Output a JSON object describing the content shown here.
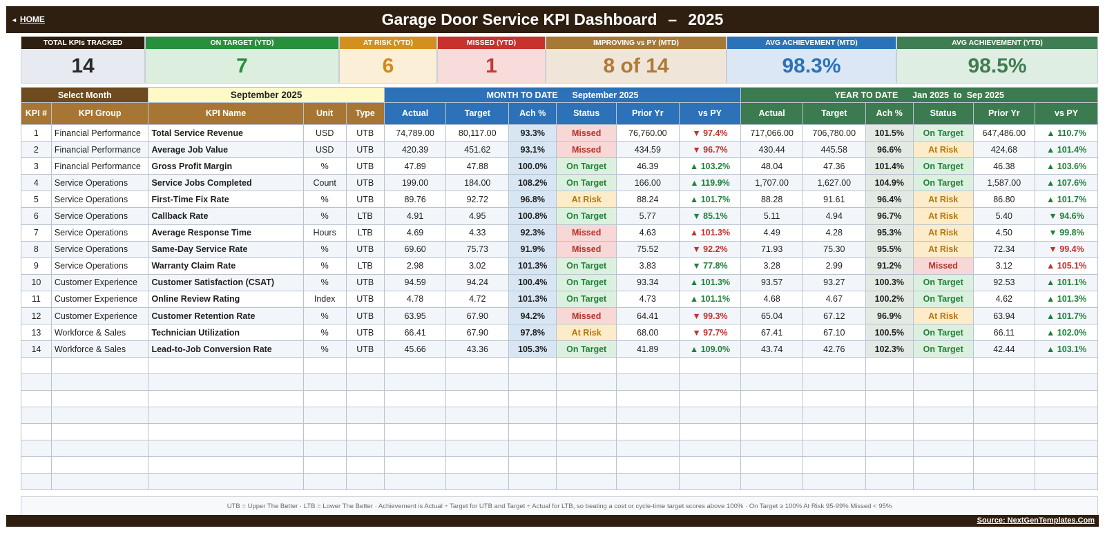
{
  "header": {
    "home_label": "HOME",
    "title": "Garage Door Service KPI Dashboard",
    "title_sep": "–",
    "year": "2025"
  },
  "cards": [
    {
      "label": "TOTAL KPIs TRACKED",
      "value": "14",
      "head_bg": "#2e1f10",
      "body_bg": "#e7ebf1",
      "val_color": "#2a2a2a"
    },
    {
      "label": "ON TARGET (YTD)",
      "value": "7",
      "head_bg": "#27903c",
      "body_bg": "#dcefdf",
      "val_color": "#27903c"
    },
    {
      "label": "AT RISK (YTD)",
      "value": "6",
      "head_bg": "#d4901f",
      "body_bg": "#fcefd8",
      "val_color": "#d08a1c"
    },
    {
      "label": "MISSED (YTD)",
      "value": "1",
      "head_bg": "#c8322c",
      "body_bg": "#f8dcdc",
      "val_color": "#c23a31"
    },
    {
      "label": "IMPROVING vs PY (MTD)",
      "value": "8 of 14",
      "head_bg": "#a87836",
      "body_bg": "#efe5d8",
      "val_color": "#b07a35"
    },
    {
      "label": "AVG ACHIEVEMENT (MTD)",
      "value": "98.3%",
      "head_bg": "#2c72b8",
      "body_bg": "#dbe7f4",
      "val_color": "#2c72b8"
    },
    {
      "label": "AVG ACHIEVEMENT (YTD)",
      "value": "98.5%",
      "head_bg": "#3f7d52",
      "body_bg": "#dfeee2",
      "val_color": "#3f7d52"
    }
  ],
  "selector": {
    "label": "Select Month",
    "value": "September 2025"
  },
  "mtd": {
    "label": "MONTH TO DATE",
    "period": "September 2025"
  },
  "ytd": {
    "label": "YEAR TO DATE",
    "period_from": "Jan 2025",
    "period_to_word": "to",
    "period_to": "Sep 2025"
  },
  "columns": {
    "kpi_num": "KPI #",
    "group": "KPI Group",
    "name": "KPI Name",
    "unit": "Unit",
    "type": "Type",
    "actual": "Actual",
    "target": "Target",
    "ach": "Ach %",
    "status": "Status",
    "prior": "Prior Yr",
    "vs_py": "vs PY"
  },
  "colors": {
    "brown_head": "#a87634",
    "dark_brown": "#6e4a1f",
    "mtd_blue": "#2d72b8",
    "ytd_green": "#3c7b4f",
    "selector_bg": "#fff9c8",
    "status_missed_bg": "#f8d7d7",
    "status_missed_fg": "#b8322b",
    "status_risk_bg": "#fcecc9",
    "status_risk_fg": "#b6760f",
    "status_ok_bg": "#dcf0df",
    "status_ok_fg": "#22803a",
    "up_color": "#22803a",
    "down_color": "#c0322b",
    "mtd_ach_bg": "#d8e6f4",
    "ytd_ach_bg": "#e2eae3"
  },
  "rows": [
    {
      "num": "1",
      "group": "Financial Performance",
      "name": "Total Service Revenue",
      "unit": "USD",
      "type": "UTB",
      "m_actual": "74,789.00",
      "m_target": "80,117.00",
      "m_ach": "93.3%",
      "m_status": "Missed",
      "m_prior": "76,760.00",
      "m_vs": "▼ 97.4%",
      "m_vs_good": false,
      "y_actual": "717,066.00",
      "y_target": "706,780.00",
      "y_ach": "101.5%",
      "y_status": "On Target",
      "y_prior": "647,486.00",
      "y_vs": "▲ 110.7%",
      "y_vs_good": true
    },
    {
      "num": "2",
      "group": "Financial Performance",
      "name": "Average Job Value",
      "unit": "USD",
      "type": "UTB",
      "m_actual": "420.39",
      "m_target": "451.62",
      "m_ach": "93.1%",
      "m_status": "Missed",
      "m_prior": "434.59",
      "m_vs": "▼ 96.7%",
      "m_vs_good": false,
      "y_actual": "430.44",
      "y_target": "445.58",
      "y_ach": "96.6%",
      "y_status": "At Risk",
      "y_prior": "424.68",
      "y_vs": "▲ 101.4%",
      "y_vs_good": true
    },
    {
      "num": "3",
      "group": "Financial Performance",
      "name": "Gross Profit Margin",
      "unit": "%",
      "type": "UTB",
      "m_actual": "47.89",
      "m_target": "47.88",
      "m_ach": "100.0%",
      "m_status": "On Target",
      "m_prior": "46.39",
      "m_vs": "▲ 103.2%",
      "m_vs_good": true,
      "y_actual": "48.04",
      "y_target": "47.36",
      "y_ach": "101.4%",
      "y_status": "On Target",
      "y_prior": "46.38",
      "y_vs": "▲ 103.6%",
      "y_vs_good": true
    },
    {
      "num": "4",
      "group": "Service Operations",
      "name": "Service Jobs Completed",
      "unit": "Count",
      "type": "UTB",
      "m_actual": "199.00",
      "m_target": "184.00",
      "m_ach": "108.2%",
      "m_status": "On Target",
      "m_prior": "166.00",
      "m_vs": "▲ 119.9%",
      "m_vs_good": true,
      "y_actual": "1,707.00",
      "y_target": "1,627.00",
      "y_ach": "104.9%",
      "y_status": "On Target",
      "y_prior": "1,587.00",
      "y_vs": "▲ 107.6%",
      "y_vs_good": true
    },
    {
      "num": "5",
      "group": "Service Operations",
      "name": "First-Time Fix Rate",
      "unit": "%",
      "type": "UTB",
      "m_actual": "89.76",
      "m_target": "92.72",
      "m_ach": "96.8%",
      "m_status": "At Risk",
      "m_prior": "88.24",
      "m_vs": "▲ 101.7%",
      "m_vs_good": true,
      "y_actual": "88.28",
      "y_target": "91.61",
      "y_ach": "96.4%",
      "y_status": "At Risk",
      "y_prior": "86.80",
      "y_vs": "▲ 101.7%",
      "y_vs_good": true
    },
    {
      "num": "6",
      "group": "Service Operations",
      "name": "Callback Rate",
      "unit": "%",
      "type": "LTB",
      "m_actual": "4.91",
      "m_target": "4.95",
      "m_ach": "100.8%",
      "m_status": "On Target",
      "m_prior": "5.77",
      "m_vs": "▼ 85.1%",
      "m_vs_good": true,
      "y_actual": "5.11",
      "y_target": "4.94",
      "y_ach": "96.7%",
      "y_status": "At Risk",
      "y_prior": "5.40",
      "y_vs": "▼ 94.6%",
      "y_vs_good": true
    },
    {
      "num": "7",
      "group": "Service Operations",
      "name": "Average Response Time",
      "unit": "Hours",
      "type": "LTB",
      "m_actual": "4.69",
      "m_target": "4.33",
      "m_ach": "92.3%",
      "m_status": "Missed",
      "m_prior": "4.63",
      "m_vs": "▲ 101.3%",
      "m_vs_good": false,
      "y_actual": "4.49",
      "y_target": "4.28",
      "y_ach": "95.3%",
      "y_status": "At Risk",
      "y_prior": "4.50",
      "y_vs": "▼ 99.8%",
      "y_vs_good": true
    },
    {
      "num": "8",
      "group": "Service Operations",
      "name": "Same-Day Service Rate",
      "unit": "%",
      "type": "UTB",
      "m_actual": "69.60",
      "m_target": "75.73",
      "m_ach": "91.9%",
      "m_status": "Missed",
      "m_prior": "75.52",
      "m_vs": "▼ 92.2%",
      "m_vs_good": false,
      "y_actual": "71.93",
      "y_target": "75.30",
      "y_ach": "95.5%",
      "y_status": "At Risk",
      "y_prior": "72.34",
      "y_vs": "▼ 99.4%",
      "y_vs_good": false
    },
    {
      "num": "9",
      "group": "Service Operations",
      "name": "Warranty Claim Rate",
      "unit": "%",
      "type": "LTB",
      "m_actual": "2.98",
      "m_target": "3.02",
      "m_ach": "101.3%",
      "m_status": "On Target",
      "m_prior": "3.83",
      "m_vs": "▼ 77.8%",
      "m_vs_good": true,
      "y_actual": "3.28",
      "y_target": "2.99",
      "y_ach": "91.2%",
      "y_status": "Missed",
      "y_prior": "3.12",
      "y_vs": "▲ 105.1%",
      "y_vs_good": false
    },
    {
      "num": "10",
      "group": "Customer Experience",
      "name": "Customer Satisfaction (CSAT)",
      "unit": "%",
      "type": "UTB",
      "m_actual": "94.59",
      "m_target": "94.24",
      "m_ach": "100.4%",
      "m_status": "On Target",
      "m_prior": "93.34",
      "m_vs": "▲ 101.3%",
      "m_vs_good": true,
      "y_actual": "93.57",
      "y_target": "93.27",
      "y_ach": "100.3%",
      "y_status": "On Target",
      "y_prior": "92.53",
      "y_vs": "▲ 101.1%",
      "y_vs_good": true
    },
    {
      "num": "11",
      "group": "Customer Experience",
      "name": "Online Review Rating",
      "unit": "Index",
      "type": "UTB",
      "m_actual": "4.78",
      "m_target": "4.72",
      "m_ach": "101.3%",
      "m_status": "On Target",
      "m_prior": "4.73",
      "m_vs": "▲ 101.1%",
      "m_vs_good": true,
      "y_actual": "4.68",
      "y_target": "4.67",
      "y_ach": "100.2%",
      "y_status": "On Target",
      "y_prior": "4.62",
      "y_vs": "▲ 101.3%",
      "y_vs_good": true
    },
    {
      "num": "12",
      "group": "Customer Experience",
      "name": "Customer Retention Rate",
      "unit": "%",
      "type": "UTB",
      "m_actual": "63.95",
      "m_target": "67.90",
      "m_ach": "94.2%",
      "m_status": "Missed",
      "m_prior": "64.41",
      "m_vs": "▼ 99.3%",
      "m_vs_good": false,
      "y_actual": "65.04",
      "y_target": "67.12",
      "y_ach": "96.9%",
      "y_status": "At Risk",
      "y_prior": "63.94",
      "y_vs": "▲ 101.7%",
      "y_vs_good": true
    },
    {
      "num": "13",
      "group": "Workforce & Sales",
      "name": "Technician Utilization",
      "unit": "%",
      "type": "UTB",
      "m_actual": "66.41",
      "m_target": "67.90",
      "m_ach": "97.8%",
      "m_status": "At Risk",
      "m_prior": "68.00",
      "m_vs": "▼ 97.7%",
      "m_vs_good": false,
      "y_actual": "67.41",
      "y_target": "67.10",
      "y_ach": "100.5%",
      "y_status": "On Target",
      "y_prior": "66.11",
      "y_vs": "▲ 102.0%",
      "y_vs_good": true
    },
    {
      "num": "14",
      "group": "Workforce & Sales",
      "name": "Lead-to-Job Conversion Rate",
      "unit": "%",
      "type": "UTB",
      "m_actual": "45.66",
      "m_target": "43.36",
      "m_ach": "105.3%",
      "m_status": "On Target",
      "m_prior": "41.89",
      "m_vs": "▲ 109.0%",
      "m_vs_good": true,
      "y_actual": "43.74",
      "y_target": "42.76",
      "y_ach": "102.3%",
      "y_status": "On Target",
      "y_prior": "42.44",
      "y_vs": "▲ 103.1%",
      "y_vs_good": true
    }
  ],
  "empty_rows": 8,
  "footer": {
    "note": "UTB = Upper The Better   ·   LTB = Lower The Better   ·   Achievement is Actual ÷ Target for UTB and Target ÷ Actual for LTB, so beating a cost or cycle-time target scores above 100%   ·   On Target ≥ 100%    At Risk 95-99%    Missed < 95%",
    "source": "Source: NextGenTemplates.Com"
  }
}
